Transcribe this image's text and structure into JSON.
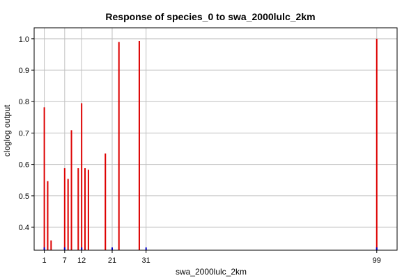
{
  "chart_data": {
    "type": "bar",
    "title": "Response of species_0 to swa_2000lulc_2km",
    "xlabel": "swa_2000lulc_2km",
    "ylabel": "cloglog output",
    "x_ticks": [
      1,
      7,
      12,
      21,
      31,
      99
    ],
    "y_ticks": [
      0.4,
      0.5,
      0.6,
      0.7,
      0.8,
      0.9,
      1.0
    ],
    "y_tick_labels": [
      "0.4",
      "0.5",
      "0.6",
      "0.7",
      "0.8",
      "0.9",
      "1.0"
    ],
    "xlim": [
      -2,
      105
    ],
    "ylim": [
      0.327,
      1.035
    ],
    "grid": true,
    "colors": {
      "bar": "#dd0000",
      "baseline_marker": "#0000cc",
      "grid": "#c0c0c0"
    },
    "series": [
      {
        "x": [
          1,
          2,
          3,
          7,
          8,
          9,
          11,
          12,
          13,
          14,
          19,
          23,
          29,
          99
        ],
        "values": [
          0.782,
          0.547,
          0.358,
          0.588,
          0.554,
          0.709,
          0.588,
          0.795,
          0.588,
          0.583,
          0.635,
          0.99,
          0.993,
          1.0
        ]
      }
    ],
    "baseline_markers_x": [
      1,
      7,
      12,
      21,
      31,
      99
    ]
  }
}
